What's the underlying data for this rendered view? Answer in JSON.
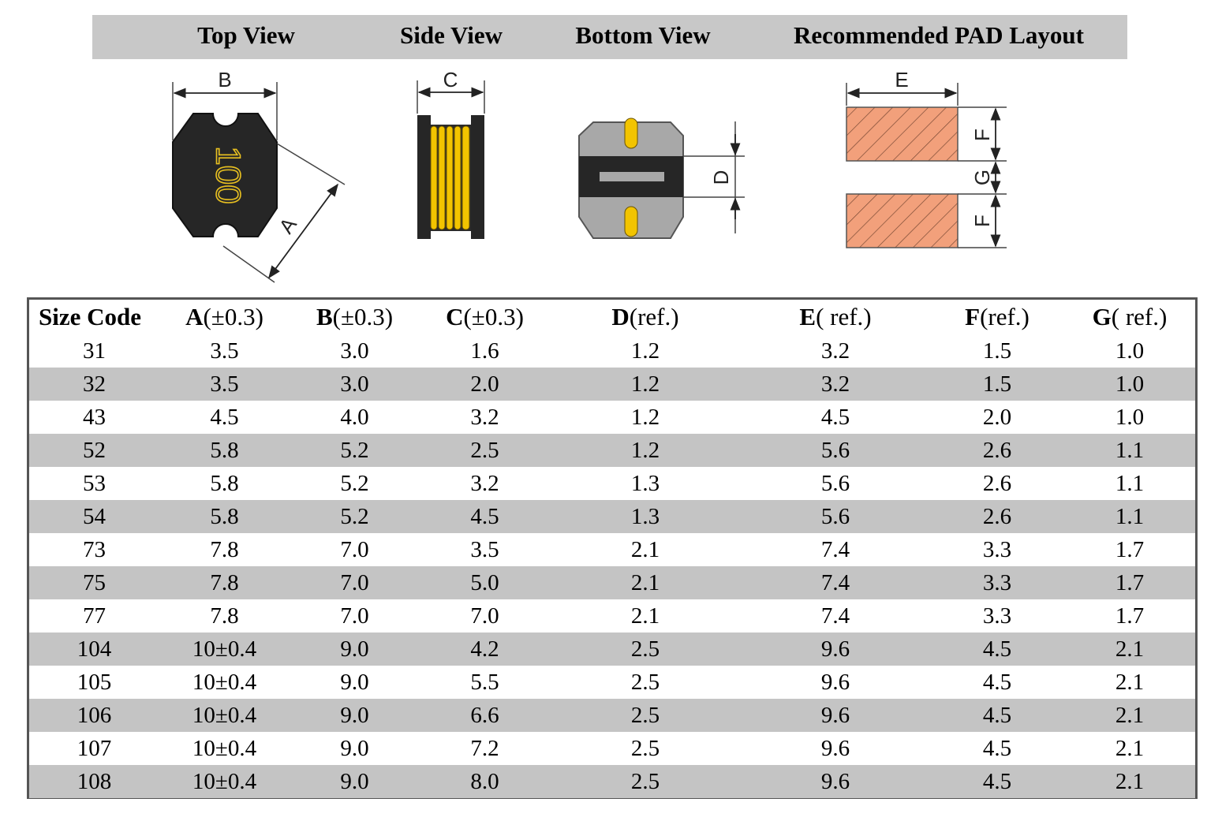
{
  "header": {
    "titles": [
      "Top View",
      "Side View",
      "Bottom View",
      "Recommended PAD Layout"
    ]
  },
  "drawings": {
    "top_view": {
      "marking": "100",
      "dim_width": "B",
      "dim_diagonal": "A"
    },
    "side_view": {
      "dim_height": "C"
    },
    "bottom_view": {
      "dim_slot": "D"
    },
    "pad_layout": {
      "dim_width": "E",
      "dim_pad": "F",
      "dim_gap": "G"
    },
    "colors": {
      "body": "#262626",
      "winding": "#f2c400",
      "ferrite_gray": "#a8a8a8",
      "pad_fill": "#f2a07b",
      "header_bg": "#c8c8c8",
      "row_shade": "#c4c4c4"
    }
  },
  "table": {
    "headers": [
      {
        "letter": "Size Code",
        "rest": ""
      },
      {
        "letter": "A",
        "rest": "(±0.3)"
      },
      {
        "letter": "B",
        "rest": "(±0.3)"
      },
      {
        "letter": "C",
        "rest": "(±0.3)"
      },
      {
        "letter": "D",
        "rest": "(ref.)"
      },
      {
        "letter": "E",
        "rest": "( ref.)"
      },
      {
        "letter": "F",
        "rest": "(ref.)"
      },
      {
        "letter": "G",
        "rest": "( ref.)"
      }
    ],
    "rows": [
      [
        "31",
        "3.5",
        "3.0",
        "1.6",
        "1.2",
        "3.2",
        "1.5",
        "1.0"
      ],
      [
        "32",
        "3.5",
        "3.0",
        "2.0",
        "1.2",
        "3.2",
        "1.5",
        "1.0"
      ],
      [
        "43",
        "4.5",
        "4.0",
        "3.2",
        "1.2",
        "4.5",
        "2.0",
        "1.0"
      ],
      [
        "52",
        "5.8",
        "5.2",
        "2.5",
        "1.2",
        "5.6",
        "2.6",
        "1.1"
      ],
      [
        "53",
        "5.8",
        "5.2",
        "3.2",
        "1.3",
        "5.6",
        "2.6",
        "1.1"
      ],
      [
        "54",
        "5.8",
        "5.2",
        "4.5",
        "1.3",
        "5.6",
        "2.6",
        "1.1"
      ],
      [
        "73",
        "7.8",
        "7.0",
        "3.5",
        "2.1",
        "7.4",
        "3.3",
        "1.7"
      ],
      [
        "75",
        "7.8",
        "7.0",
        "5.0",
        "2.1",
        "7.4",
        "3.3",
        "1.7"
      ],
      [
        "77",
        "7.8",
        "7.0",
        "7.0",
        "2.1",
        "7.4",
        "3.3",
        "1.7"
      ],
      [
        "104",
        "10±0.4",
        "9.0",
        "4.2",
        "2.5",
        "9.6",
        "4.5",
        "2.1"
      ],
      [
        "105",
        "10±0.4",
        "9.0",
        "5.5",
        "2.5",
        "9.6",
        "4.5",
        "2.1"
      ],
      [
        "106",
        "10±0.4",
        "9.0",
        "6.6",
        "2.5",
        "9.6",
        "4.5",
        "2.1"
      ],
      [
        "107",
        "10±0.4",
        "9.0",
        "7.2",
        "2.5",
        "9.6",
        "4.5",
        "2.1"
      ],
      [
        "108",
        "10±0.4",
        "9.0",
        "8.0",
        "2.5",
        "9.6",
        "4.5",
        "2.1"
      ]
    ]
  }
}
